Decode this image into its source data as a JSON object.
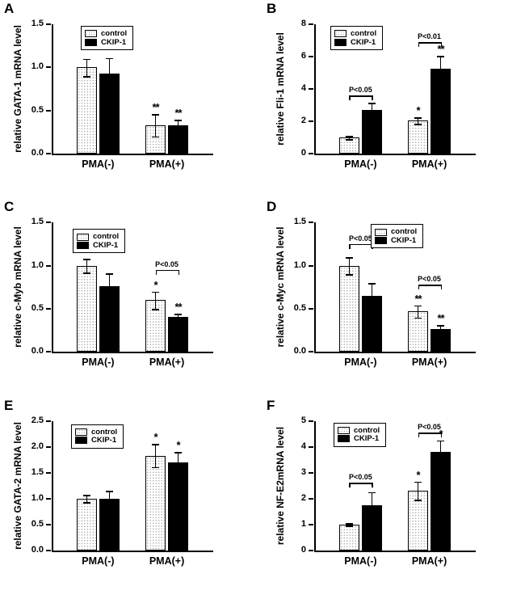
{
  "figure": {
    "legend_labels": [
      "control",
      "CKIP-1"
    ],
    "x_categories": [
      "PMA(-)",
      "PMA(+)"
    ]
  },
  "chart_data": [
    {
      "type": "bar",
      "panel": "A",
      "ylabel": "relative GATA-1 mRNA level",
      "ylim": [
        0,
        1.5
      ],
      "yticks": [
        "0.0",
        "0.5",
        "1.0",
        "1.5"
      ],
      "categories": [
        "PMA(-)",
        "PMA(+)"
      ],
      "series": [
        {
          "name": "control",
          "values": [
            1.0,
            0.33
          ],
          "errors": [
            0.1,
            0.13
          ]
        },
        {
          "name": "CKIP-1",
          "values": [
            0.93,
            0.33
          ],
          "errors": [
            0.18,
            0.06
          ]
        }
      ],
      "stars": [
        {
          "series": 0,
          "group": 1,
          "text": "**"
        },
        {
          "series": 1,
          "group": 1,
          "text": "**"
        }
      ],
      "brackets": [],
      "legend_position": "top-left"
    },
    {
      "type": "bar",
      "panel": "B",
      "ylabel": "relative Fli-1 mRNA level",
      "ylim": [
        0,
        8
      ],
      "yticks": [
        "0",
        "2",
        "4",
        "6",
        "8"
      ],
      "categories": [
        "PMA(-)",
        "PMA(+)"
      ],
      "series": [
        {
          "name": "control",
          "values": [
            1.0,
            2.05
          ],
          "errors": [
            0.1,
            0.2
          ]
        },
        {
          "name": "CKIP-1",
          "values": [
            2.7,
            5.25
          ],
          "errors": [
            0.45,
            0.8
          ]
        }
      ],
      "stars": [
        {
          "series": 0,
          "group": 1,
          "text": "*"
        },
        {
          "series": 1,
          "group": 1,
          "text": "**"
        }
      ],
      "brackets": [
        {
          "group": 0,
          "label": "P<0.05",
          "y": 3.6
        },
        {
          "group": 1,
          "label": "P<0.01",
          "y": 6.9
        }
      ],
      "legend_position": "top-left"
    },
    {
      "type": "bar",
      "panel": "C",
      "ylabel": "relative c-Myb mRNA level",
      "ylim": [
        0,
        1.5
      ],
      "yticks": [
        "0.0",
        "0.5",
        "1.0",
        "1.5"
      ],
      "categories": [
        "PMA(-)",
        "PMA(+)"
      ],
      "series": [
        {
          "name": "control",
          "values": [
            1.0,
            0.6
          ],
          "errors": [
            0.08,
            0.1
          ]
        },
        {
          "name": "CKIP-1",
          "values": [
            0.76,
            0.41
          ],
          "errors": [
            0.15,
            0.03
          ]
        }
      ],
      "stars": [
        {
          "series": 0,
          "group": 1,
          "text": "*"
        },
        {
          "series": 1,
          "group": 1,
          "text": "**"
        }
      ],
      "brackets": [
        {
          "group": 1,
          "label": "P<0.05",
          "y": 0.95
        }
      ],
      "legend_position": "top-left"
    },
    {
      "type": "bar",
      "panel": "D",
      "ylabel": "relative c-Myc mRNA level",
      "ylim": [
        0,
        1.5
      ],
      "yticks": [
        "0.0",
        "0.5",
        "1.0",
        "1.5"
      ],
      "categories": [
        "PMA(-)",
        "PMA(+)"
      ],
      "series": [
        {
          "name": "control",
          "values": [
            1.0,
            0.47
          ],
          "errors": [
            0.1,
            0.07
          ]
        },
        {
          "name": "CKIP-1",
          "values": [
            0.65,
            0.27
          ],
          "errors": [
            0.15,
            0.04
          ]
        }
      ],
      "stars": [
        {
          "series": 0,
          "group": 1,
          "text": "**"
        },
        {
          "series": 1,
          "group": 1,
          "text": "**"
        }
      ],
      "brackets": [
        {
          "group": 0,
          "label": "P<0.05",
          "y": 1.25
        },
        {
          "group": 1,
          "label": "P<0.05",
          "y": 0.78
        }
      ],
      "legend_position": "top-center"
    },
    {
      "type": "bar",
      "panel": "E",
      "ylabel": "relative GATA-2 mRNA level",
      "ylim": [
        0,
        2.5
      ],
      "yticks": [
        "0.0",
        "0.5",
        "1.0",
        "1.5",
        "2.0",
        "2.5"
      ],
      "categories": [
        "PMA(-)",
        "PMA(+)"
      ],
      "series": [
        {
          "name": "control",
          "values": [
            1.0,
            1.83
          ],
          "errors": [
            0.07,
            0.22
          ]
        },
        {
          "name": "CKIP-1",
          "values": [
            1.0,
            1.7
          ],
          "errors": [
            0.15,
            0.2
          ]
        }
      ],
      "stars": [
        {
          "series": 0,
          "group": 1,
          "text": "*"
        },
        {
          "series": 1,
          "group": 1,
          "text": "*"
        }
      ],
      "brackets": [],
      "legend_position": "top-left"
    },
    {
      "type": "bar",
      "panel": "F",
      "ylabel": "relative NF-E2mRNA level",
      "ylim": [
        0,
        5
      ],
      "yticks": [
        "0",
        "1",
        "2",
        "3",
        "4",
        "5"
      ],
      "categories": [
        "PMA(-)",
        "PMA(+)"
      ],
      "series": [
        {
          "name": "control",
          "values": [
            1.0,
            2.3
          ],
          "errors": [
            0.05,
            0.35
          ]
        },
        {
          "name": "CKIP-1",
          "values": [
            1.75,
            3.8
          ],
          "errors": [
            0.5,
            0.45
          ]
        }
      ],
      "stars": [
        {
          "series": 0,
          "group": 1,
          "text": "*"
        },
        {
          "series": 1,
          "group": 1,
          "text": "*"
        }
      ],
      "brackets": [
        {
          "group": 0,
          "label": "P<0.05",
          "y": 2.6
        },
        {
          "group": 1,
          "label": "P<0.05",
          "y": 4.55
        }
      ],
      "legend_position": "top-left"
    }
  ]
}
